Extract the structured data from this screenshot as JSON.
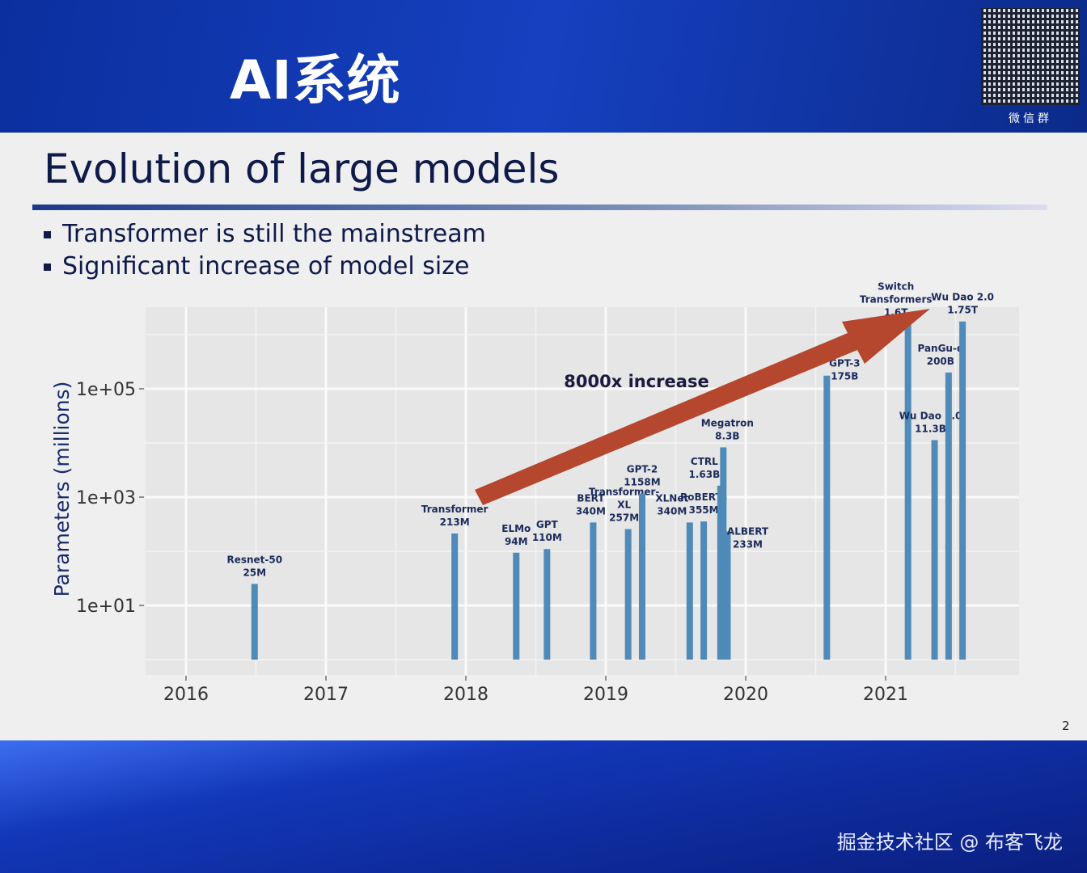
{
  "header": {
    "title": "AI系统",
    "qr_label": "微信群"
  },
  "slide": {
    "title": "Evolution of large models",
    "bullets": [
      "Transformer is still the mainstream",
      "Significant increase of model size"
    ],
    "page_number": "2"
  },
  "watermark": "掘金技术社区 @ 布客飞龙",
  "chart_data": {
    "type": "bar",
    "ylabel": "Parameters (millions)",
    "yscale": "log",
    "ylim": [
      1,
      3000000
    ],
    "yticks": [
      "1e+01",
      "1e+03",
      "1e+05"
    ],
    "ytick_values": [
      10,
      1000,
      100000
    ],
    "xticks": [
      "2016",
      "2017",
      "2018",
      "2019",
      "2020",
      "2021"
    ],
    "xlim": [
      2015.7,
      2021.95
    ],
    "grid": true,
    "bar_color": "#4f8ab8",
    "annotation": "8000x increase",
    "arrow_color": "#b5472e",
    "points": [
      {
        "name": "Resnet-50",
        "label": "25M",
        "x": 2016.49,
        "value": 25
      },
      {
        "name": "Transformer",
        "label": "213M",
        "x": 2017.92,
        "value": 213
      },
      {
        "name": "ELMo",
        "label": "94M",
        "x": 2018.36,
        "value": 94
      },
      {
        "name": "GPT",
        "label": "110M",
        "x": 2018.58,
        "value": 110
      },
      {
        "name": "BERT",
        "label": "340M",
        "x": 2018.91,
        "value": 340
      },
      {
        "name": "Transformer-XL",
        "label": "257M",
        "x": 2019.16,
        "value": 257
      },
      {
        "name": "GPT-2",
        "label": "1158M",
        "x": 2019.26,
        "value": 1158
      },
      {
        "name": "XLNet",
        "label": "340M",
        "x": 2019.6,
        "value": 340
      },
      {
        "name": "RoBERTa",
        "label": "355M",
        "x": 2019.7,
        "value": 355
      },
      {
        "name": "CTRL",
        "label": "1.63B",
        "x": 2019.82,
        "value": 1630
      },
      {
        "name": "Megatron",
        "label": "8.3B",
        "x": 2019.84,
        "value": 8300
      },
      {
        "name": "ALBERT",
        "label": "233M",
        "x": 2019.87,
        "value": 233
      },
      {
        "name": "GPT-3",
        "label": "175B",
        "x": 2020.58,
        "value": 175000
      },
      {
        "name": "Switch Transformers",
        "label": "1.6T",
        "x": 2021.16,
        "value": 1600000
      },
      {
        "name": "Wu Dao 1.0",
        "label": "11.3B",
        "x": 2021.35,
        "value": 11300
      },
      {
        "name": "PanGu-α",
        "label": "200B",
        "x": 2021.45,
        "value": 200000
      },
      {
        "name": "Wu Dao 2.0",
        "label": "1.75T",
        "x": 2021.55,
        "value": 1750000
      }
    ]
  }
}
